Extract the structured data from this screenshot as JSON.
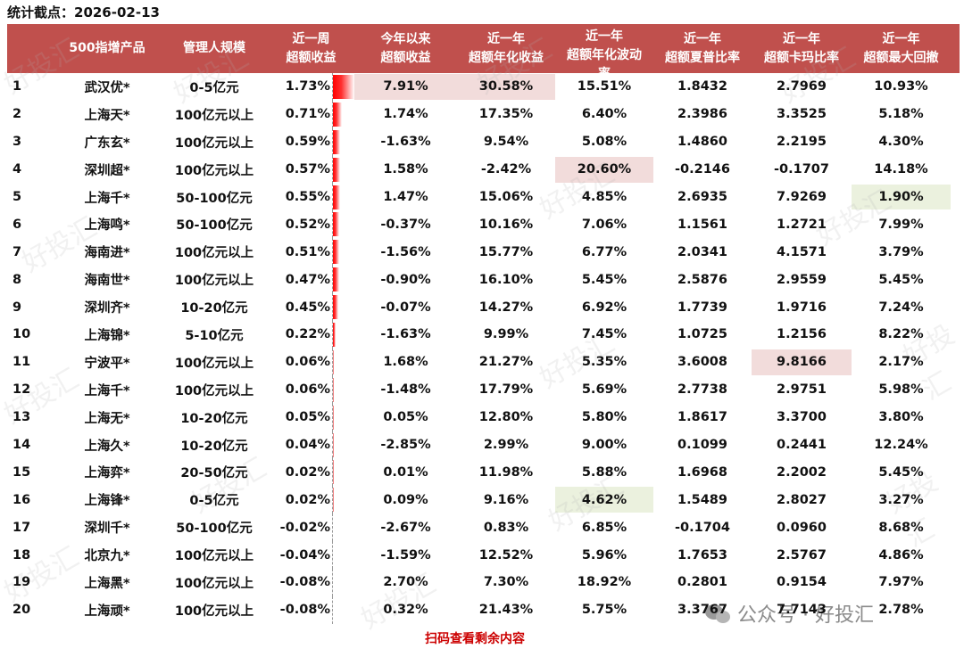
{
  "title": "统计截点：2026-02-13",
  "header": {
    "rank": "",
    "product": "500指增产品",
    "scale": "管理人规模",
    "week": [
      "近一周",
      "超额收益"
    ],
    "ytd": [
      "今年以来",
      "超额收益"
    ],
    "ann_return": [
      "近一年",
      "超额年化收益"
    ],
    "ann_vol": [
      "近一年",
      "超额年化波动",
      "率"
    ],
    "sharpe": [
      "近一年",
      "超额夏普比率"
    ],
    "calmar": [
      "近一年",
      "超额卡玛比率"
    ],
    "max_dd": [
      "近一年",
      "超额最大回撤"
    ]
  },
  "colors": {
    "header_bg": "#C0504D",
    "header_text": "#FFFFFF",
    "highlight_max": "#F2DCDB",
    "highlight_min": "#EBF1DE",
    "data_bar": "#FF0000",
    "footer_link": "#CC0000"
  },
  "rows": [
    {
      "rank": "1",
      "product": "武汉优*",
      "scale": "0-5亿元",
      "week": "1.73%",
      "bar": 1.73,
      "ytd": "7.91%",
      "ann_return": "30.58%",
      "ann_vol": "15.51%",
      "sharpe": "1.8432",
      "calmar": "2.7969",
      "max_dd": "10.93%",
      "hl": {
        "ytd": "red",
        "ann_return": "red"
      }
    },
    {
      "rank": "2",
      "product": "上海天*",
      "scale": "100亿元以上",
      "week": "0.71%",
      "bar": 0.71,
      "ytd": "1.74%",
      "ann_return": "17.35%",
      "ann_vol": "6.40%",
      "sharpe": "2.3986",
      "calmar": "3.3525",
      "max_dd": "5.18%",
      "hl": {}
    },
    {
      "rank": "3",
      "product": "广东玄*",
      "scale": "100亿元以上",
      "week": "0.59%",
      "bar": 0.59,
      "ytd": "-1.63%",
      "ann_return": "9.54%",
      "ann_vol": "5.08%",
      "sharpe": "1.4860",
      "calmar": "2.2195",
      "max_dd": "4.30%",
      "hl": {}
    },
    {
      "rank": "4",
      "product": "深圳超*",
      "scale": "100亿元以上",
      "week": "0.57%",
      "bar": 0.57,
      "ytd": "1.58%",
      "ann_return": "-2.42%",
      "ann_vol": "20.60%",
      "sharpe": "-0.2146",
      "calmar": "-0.1707",
      "max_dd": "14.18%",
      "hl": {
        "ann_vol": "red"
      }
    },
    {
      "rank": "5",
      "product": "上海千*",
      "scale": "50-100亿元",
      "week": "0.55%",
      "bar": 0.55,
      "ytd": "1.47%",
      "ann_return": "15.06%",
      "ann_vol": "4.85%",
      "sharpe": "2.6935",
      "calmar": "7.9269",
      "max_dd": "1.90%",
      "hl": {
        "max_dd": "green"
      }
    },
    {
      "rank": "6",
      "product": "上海鸣*",
      "scale": "50-100亿元",
      "week": "0.52%",
      "bar": 0.52,
      "ytd": "-0.37%",
      "ann_return": "10.16%",
      "ann_vol": "7.06%",
      "sharpe": "1.1561",
      "calmar": "1.2721",
      "max_dd": "7.99%",
      "hl": {}
    },
    {
      "rank": "7",
      "product": "海南进*",
      "scale": "100亿元以上",
      "week": "0.51%",
      "bar": 0.51,
      "ytd": "-1.56%",
      "ann_return": "15.77%",
      "ann_vol": "6.77%",
      "sharpe": "2.0341",
      "calmar": "4.1571",
      "max_dd": "3.79%",
      "hl": {}
    },
    {
      "rank": "8",
      "product": "海南世*",
      "scale": "100亿元以上",
      "week": "0.47%",
      "bar": 0.47,
      "ytd": "-0.90%",
      "ann_return": "16.10%",
      "ann_vol": "5.45%",
      "sharpe": "2.5876",
      "calmar": "2.9559",
      "max_dd": "5.45%",
      "hl": {}
    },
    {
      "rank": "9",
      "product": "深圳齐*",
      "scale": "10-20亿元",
      "week": "0.45%",
      "bar": 0.45,
      "ytd": "-0.07%",
      "ann_return": "14.27%",
      "ann_vol": "6.92%",
      "sharpe": "1.7739",
      "calmar": "1.9716",
      "max_dd": "7.24%",
      "hl": {}
    },
    {
      "rank": "10",
      "product": "上海锦*",
      "scale": "5-10亿元",
      "week": "0.22%",
      "bar": 0.22,
      "ytd": "-1.63%",
      "ann_return": "9.99%",
      "ann_vol": "7.45%",
      "sharpe": "1.0725",
      "calmar": "1.2156",
      "max_dd": "8.22%",
      "hl": {}
    },
    {
      "rank": "11",
      "product": "宁波平*",
      "scale": "100亿元以上",
      "week": "0.06%",
      "bar": 0.06,
      "ytd": "1.68%",
      "ann_return": "21.27%",
      "ann_vol": "5.35%",
      "sharpe": "3.6008",
      "calmar": "9.8166",
      "max_dd": "2.17%",
      "hl": {
        "calmar": "red"
      }
    },
    {
      "rank": "12",
      "product": "上海千*",
      "scale": "100亿元以上",
      "week": "0.06%",
      "bar": 0.06,
      "ytd": "-1.48%",
      "ann_return": "17.79%",
      "ann_vol": "5.69%",
      "sharpe": "2.7738",
      "calmar": "2.9751",
      "max_dd": "5.98%",
      "hl": {}
    },
    {
      "rank": "13",
      "product": "上海无*",
      "scale": "10-20亿元",
      "week": "0.05%",
      "bar": 0.05,
      "ytd": "0.05%",
      "ann_return": "12.80%",
      "ann_vol": "5.80%",
      "sharpe": "1.8617",
      "calmar": "3.3700",
      "max_dd": "3.80%",
      "hl": {}
    },
    {
      "rank": "14",
      "product": "上海久*",
      "scale": "10-20亿元",
      "week": "0.04%",
      "bar": 0.04,
      "ytd": "-2.85%",
      "ann_return": "2.99%",
      "ann_vol": "9.00%",
      "sharpe": "0.1099",
      "calmar": "0.2441",
      "max_dd": "12.24%",
      "hl": {}
    },
    {
      "rank": "15",
      "product": "上海弈*",
      "scale": "20-50亿元",
      "week": "0.02%",
      "bar": 0.02,
      "ytd": "0.01%",
      "ann_return": "11.98%",
      "ann_vol": "5.88%",
      "sharpe": "1.6968",
      "calmar": "2.2002",
      "max_dd": "5.45%",
      "hl": {}
    },
    {
      "rank": "16",
      "product": "上海锋*",
      "scale": "0-5亿元",
      "week": "0.02%",
      "bar": 0.02,
      "ytd": "0.09%",
      "ann_return": "9.16%",
      "ann_vol": "4.62%",
      "sharpe": "1.5489",
      "calmar": "2.8027",
      "max_dd": "3.27%",
      "hl": {
        "ann_vol": "green"
      }
    },
    {
      "rank": "17",
      "product": "深圳千*",
      "scale": "50-100亿元",
      "week": "-0.02%",
      "bar": -0.02,
      "ytd": "-2.67%",
      "ann_return": "0.83%",
      "ann_vol": "6.85%",
      "sharpe": "-0.1704",
      "calmar": "0.0960",
      "max_dd": "8.68%",
      "hl": {}
    },
    {
      "rank": "18",
      "product": "北京九*",
      "scale": "100亿元以上",
      "week": "-0.04%",
      "bar": -0.04,
      "ytd": "-1.59%",
      "ann_return": "12.52%",
      "ann_vol": "5.96%",
      "sharpe": "1.7653",
      "calmar": "2.5767",
      "max_dd": "4.86%",
      "hl": {}
    },
    {
      "rank": "19",
      "product": "上海黑*",
      "scale": "100亿元以上",
      "week": "-0.08%",
      "bar": -0.08,
      "ytd": "2.70%",
      "ann_return": "7.30%",
      "ann_vol": "18.92%",
      "sharpe": "0.2801",
      "calmar": "0.9154",
      "max_dd": "7.97%",
      "hl": {}
    },
    {
      "rank": "20",
      "product": "上海顽*",
      "scale": "100亿元以上",
      "week": "-0.08%",
      "bar": -0.08,
      "ytd": "0.32%",
      "ann_return": "21.43%",
      "ann_vol": "5.75%",
      "sharpe": "3.3767",
      "calmar": "7.7143",
      "max_dd": "2.78%",
      "hl": {}
    }
  ],
  "footer": {
    "scan_link": "扫码查看剩余内容",
    "brand_watermark": "公众号 · 好投汇",
    "brand_icon": "wechat-icon"
  },
  "watermark_text": "好投汇"
}
